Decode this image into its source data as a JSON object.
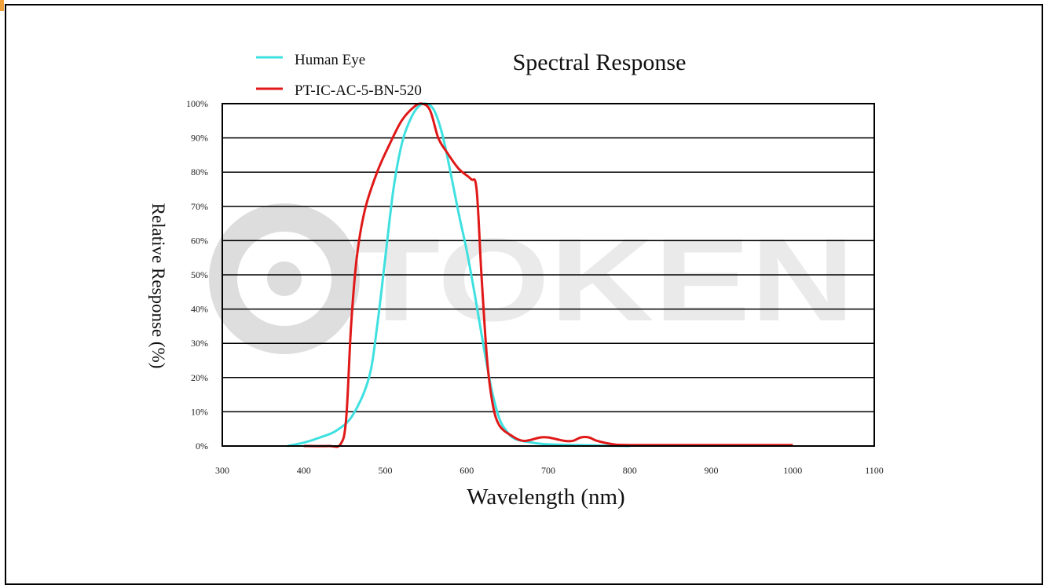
{
  "chart_data": {
    "type": "line",
    "title": "Spectral Response",
    "xlabel": "Wavelength (nm)",
    "ylabel": "Relative Response (%)",
    "xlim": [
      300,
      1100
    ],
    "ylim": [
      0,
      100
    ],
    "x_ticks": [
      "300",
      "400",
      "500",
      "600",
      "700",
      "800",
      "900",
      "1000",
      "1100"
    ],
    "y_ticks": [
      "0%",
      "10%",
      "20%",
      "30%",
      "40%",
      "50%",
      "60%",
      "70%",
      "80%",
      "90%",
      "100%"
    ],
    "grid": "horizontal",
    "legend_position": "top-left",
    "watermark": "TOKEN",
    "series": [
      {
        "name": "Human Eye",
        "color": "#3fe0e0",
        "points": [
          [
            380,
            0
          ],
          [
            400,
            1
          ],
          [
            420,
            2.5
          ],
          [
            440,
            4.5
          ],
          [
            460,
            9
          ],
          [
            480,
            20
          ],
          [
            490,
            35
          ],
          [
            500,
            55
          ],
          [
            510,
            75
          ],
          [
            520,
            88
          ],
          [
            530,
            95
          ],
          [
            540,
            99
          ],
          [
            550,
            100
          ],
          [
            560,
            98
          ],
          [
            570,
            91
          ],
          [
            580,
            80
          ],
          [
            590,
            68
          ],
          [
            600,
            57
          ],
          [
            610,
            44
          ],
          [
            620,
            30
          ],
          [
            630,
            17
          ],
          [
            640,
            8
          ],
          [
            650,
            4
          ],
          [
            660,
            2
          ],
          [
            680,
            1
          ],
          [
            700,
            0.5
          ],
          [
            750,
            0.2
          ],
          [
            800,
            0
          ]
        ]
      },
      {
        "name": "PT-IC-AC-5-BN-520",
        "color": "#e01818",
        "points": [
          [
            400,
            0
          ],
          [
            430,
            0
          ],
          [
            445,
            0.5
          ],
          [
            452,
            8
          ],
          [
            458,
            35
          ],
          [
            465,
            55
          ],
          [
            475,
            69
          ],
          [
            490,
            80
          ],
          [
            505,
            88
          ],
          [
            520,
            95
          ],
          [
            535,
            99
          ],
          [
            545,
            100
          ],
          [
            555,
            98
          ],
          [
            565,
            90
          ],
          [
            575,
            86
          ],
          [
            590,
            81
          ],
          [
            605,
            78
          ],
          [
            612,
            75
          ],
          [
            618,
            50
          ],
          [
            625,
            25
          ],
          [
            632,
            12
          ],
          [
            640,
            6
          ],
          [
            655,
            3
          ],
          [
            670,
            1.5
          ],
          [
            690,
            2.5
          ],
          [
            700,
            2.5
          ],
          [
            710,
            2
          ],
          [
            720,
            1.5
          ],
          [
            730,
            1.5
          ],
          [
            740,
            2.5
          ],
          [
            750,
            2.5
          ],
          [
            760,
            1.5
          ],
          [
            780,
            0.5
          ],
          [
            800,
            0.3
          ],
          [
            900,
            0.3
          ],
          [
            1000,
            0.3
          ]
        ]
      }
    ]
  }
}
